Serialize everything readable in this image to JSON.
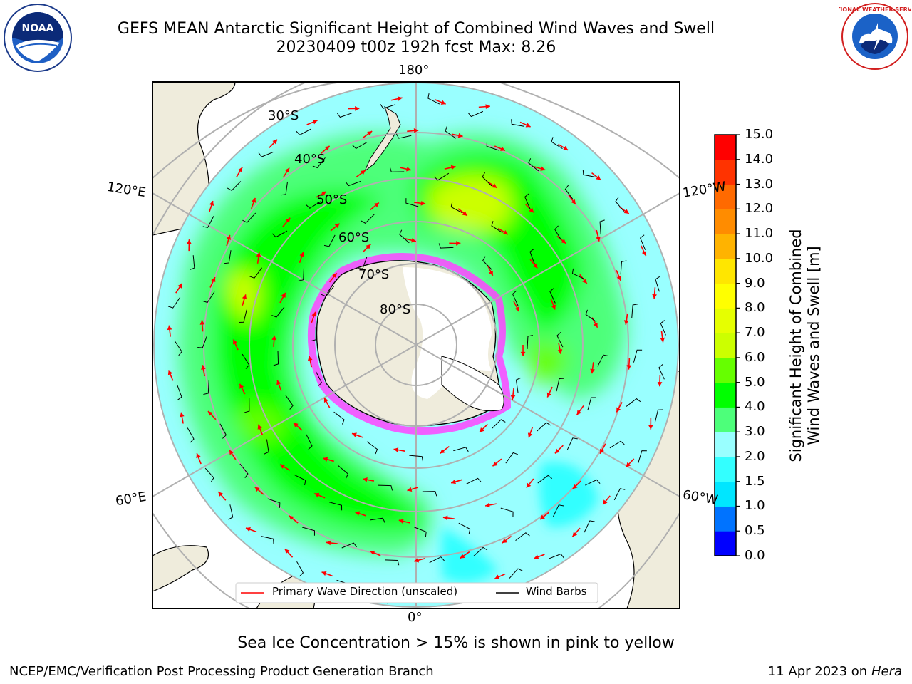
{
  "header": {
    "title_line1": "GEFS MEAN Antarctic Significant Height of Combined Wind Waves and Swell",
    "title_line2": "20230409 t00z 192h fcst   Max: 8.26"
  },
  "logos": {
    "left": "noaa-logo",
    "right": "nws-logo"
  },
  "map": {
    "projection": "south-polar-stereographic",
    "longitude_labels": {
      "top": "180°",
      "bottom": "0°",
      "left_upper": "120°E",
      "left_lower": "60°E",
      "right_upper": "120°W",
      "right_lower": "60°W"
    },
    "latitude_labels": [
      "30°S",
      "40°S",
      "50°S",
      "60°S",
      "70°S",
      "80°S"
    ],
    "colors": {
      "land": "#efecdc",
      "ice_sheet": "#ffffff",
      "grid": "#b0b0b0",
      "sea_ice": "#ff44ff"
    }
  },
  "legend": {
    "items": [
      {
        "label": "Primary Wave Direction (unscaled)",
        "color": "#ff0000"
      },
      {
        "label": "Wind Barbs",
        "color": "#000000"
      }
    ]
  },
  "colorbar": {
    "title_line1": "Significant Height of Combined",
    "title_line2": "Wind Waves and Swell [m]",
    "ticks": [
      "0.0",
      "0.5",
      "1.0",
      "1.5",
      "2.0",
      "3.0",
      "4.0",
      "5.0",
      "6.0",
      "7.0",
      "8.0",
      "9.0",
      "10.0",
      "11.0",
      "12.0",
      "13.0",
      "14.0",
      "15.0"
    ],
    "colors": [
      "#0000ff",
      "#0073ff",
      "#00e6ff",
      "#33ffff",
      "#99ffff",
      "#4dff7a",
      "#00ff00",
      "#66ff00",
      "#ccff00",
      "#e6ff00",
      "#ffff00",
      "#ffe600",
      "#ffb300",
      "#ff8c00",
      "#ff6a00",
      "#ff3300",
      "#ff0000"
    ]
  },
  "footer": {
    "subtitle": "Sea Ice Concentration > 15% is shown in pink to yellow",
    "left": "NCEP/EMC/Verification Post Processing Product Generation Branch",
    "right_prefix": "11 Apr 2023 on ",
    "right_host": "Hera"
  }
}
